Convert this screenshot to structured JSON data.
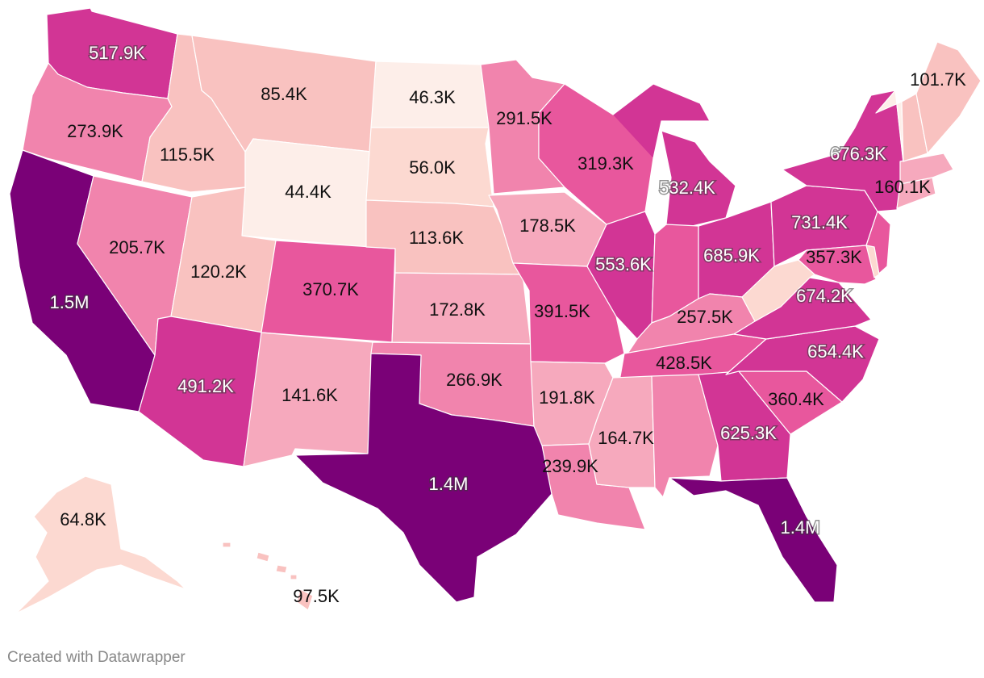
{
  "colors": {
    "background": "#ffffff",
    "scale": [
      "#fdeee9",
      "#fcd9d1",
      "#f9c2c0",
      "#f6a9bd",
      "#f184ad",
      "#e8579d",
      "#d23595",
      "#b0188a",
      "#7a0177"
    ]
  },
  "credit": "Created with Datawrapper",
  "states": [
    {
      "id": "WA",
      "label": "517.9K",
      "value": 517900
    },
    {
      "id": "OR",
      "label": "273.9K",
      "value": 273900
    },
    {
      "id": "CA",
      "label": "1.5M",
      "value": 1500000
    },
    {
      "id": "ID",
      "label": "115.5K",
      "value": 115500
    },
    {
      "id": "NV",
      "label": "205.7K",
      "value": 205700
    },
    {
      "id": "MT",
      "label": "85.4K",
      "value": 85400
    },
    {
      "id": "WY",
      "label": "44.4K",
      "value": 44400
    },
    {
      "id": "UT",
      "label": "120.2K",
      "value": 120200
    },
    {
      "id": "AZ",
      "label": "491.2K",
      "value": 491200
    },
    {
      "id": "CO",
      "label": "370.7K",
      "value": 370700
    },
    {
      "id": "NM",
      "label": "141.6K",
      "value": 141600
    },
    {
      "id": "ND",
      "label": "46.3K",
      "value": 46300
    },
    {
      "id": "SD",
      "label": "56.0K",
      "value": 56000
    },
    {
      "id": "NE",
      "label": "113.6K",
      "value": 113600
    },
    {
      "id": "KS",
      "label": "172.8K",
      "value": 172800
    },
    {
      "id": "OK",
      "label": "266.9K",
      "value": 266900
    },
    {
      "id": "TX",
      "label": "1.4M",
      "value": 1400000
    },
    {
      "id": "MN",
      "label": "291.5K",
      "value": 291500
    },
    {
      "id": "IA",
      "label": "178.5K",
      "value": 178500
    },
    {
      "id": "MO",
      "label": "391.5K",
      "value": 391500
    },
    {
      "id": "AR",
      "label": "191.8K",
      "value": 191800
    },
    {
      "id": "LA",
      "label": "239.9K",
      "value": 239900
    },
    {
      "id": "WI",
      "label": "319.3K",
      "value": 319300
    },
    {
      "id": "IL",
      "label": "553.6K",
      "value": 553600
    },
    {
      "id": "MI",
      "label": "532.4K",
      "value": 532400
    },
    {
      "id": "IN",
      "label": "",
      "value": 310000
    },
    {
      "id": "OH",
      "label": "685.9K",
      "value": 685900
    },
    {
      "id": "KY",
      "label": "257.5K",
      "value": 257500
    },
    {
      "id": "TN",
      "label": "428.5K",
      "value": 428500
    },
    {
      "id": "MS",
      "label": "164.7K",
      "value": 164700
    },
    {
      "id": "AL",
      "label": "",
      "value": 280000
    },
    {
      "id": "GA",
      "label": "625.3K",
      "value": 625300
    },
    {
      "id": "FL",
      "label": "1.4M",
      "value": 1400000
    },
    {
      "id": "SC",
      "label": "360.4K",
      "value": 360400
    },
    {
      "id": "NC",
      "label": "654.4K",
      "value": 654400
    },
    {
      "id": "VA",
      "label": "674.2K",
      "value": 674200
    },
    {
      "id": "WV",
      "label": "",
      "value": 70000
    },
    {
      "id": "PA",
      "label": "731.4K",
      "value": 731400
    },
    {
      "id": "NY",
      "label": "676.3K",
      "value": 676300
    },
    {
      "id": "NJ",
      "label": "",
      "value": 330000
    },
    {
      "id": "MD",
      "label": "357.3K",
      "value": 357300
    },
    {
      "id": "DE",
      "label": "",
      "value": 60000
    },
    {
      "id": "CT",
      "label": "",
      "value": 150000
    },
    {
      "id": "MA",
      "label": "160.1K",
      "value": 160100
    },
    {
      "id": "VT",
      "label": "",
      "value": 40000
    },
    {
      "id": "NH",
      "label": "",
      "value": 80000
    },
    {
      "id": "ME",
      "label": "101.7K",
      "value": 101700
    },
    {
      "id": "AK",
      "label": "64.8K",
      "value": 64800
    },
    {
      "id": "HI",
      "label": "97.5K",
      "value": 97500
    }
  ]
}
